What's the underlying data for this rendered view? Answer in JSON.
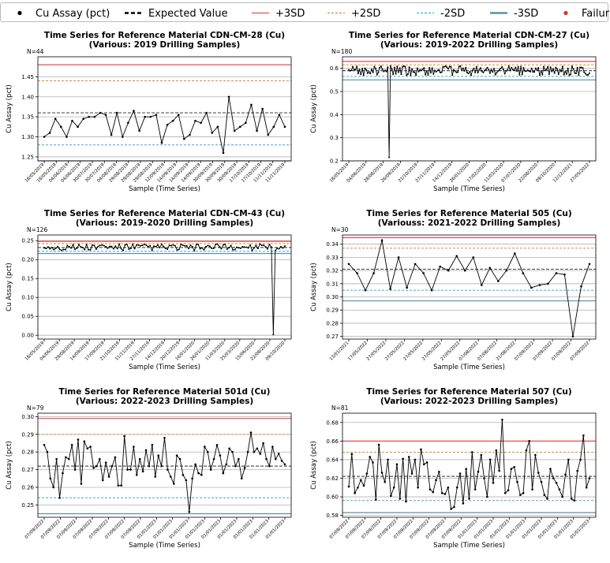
{
  "legend": {
    "items": [
      {
        "label": "Cu Assay (pct)",
        "kind": "dot",
        "color": "#000000"
      },
      {
        "label": "Expected Value",
        "kind": "thickdash",
        "color": "#000000"
      },
      {
        "label": "+3SD",
        "kind": "solid",
        "color": "#e84c4c"
      },
      {
        "label": "+2SD",
        "kind": "dash",
        "color": "#d98a2b"
      },
      {
        "label": "-2SD",
        "kind": "dash",
        "color": "#3fa9dc"
      },
      {
        "label": "-3SD",
        "kind": "thicksolid",
        "color": "#5d8fa8"
      },
      {
        "label": "Failure",
        "kind": "dot",
        "color": "#e03030"
      }
    ]
  },
  "chart_data": [
    {
      "type": "line",
      "title": "Time Series for Reference Material CDN-CM-28 (Cu)",
      "subtitle": "(Various: 2019 Drilling Samples)",
      "n_label": "N=44",
      "xlabel": "Sample (Time Series)",
      "ylabel": "Cu Assay (pct)",
      "ylim": [
        1.24,
        1.5
      ],
      "yticks": [
        "1.25",
        "1.30",
        "1.35",
        "1.40",
        "1.45"
      ],
      "ytick_values": [
        1.25,
        1.3,
        1.35,
        1.4,
        1.45
      ],
      "xticks": [
        "18/05/2019",
        "18/05/2019",
        "04/06/2019",
        "04/06/2019",
        "30/07/2019",
        "30/07/2019",
        "04/08/2019",
        "29/08/2019",
        "29/08/2019",
        "29/08/2019",
        "12/09/2019",
        "14/09/2019",
        "14/09/2019",
        "14/09/2019",
        "30/09/2019",
        "30/09/2019",
        "30/09/2019",
        "17/10/2019",
        "17/10/2019",
        "11/11/2019",
        "11/11/2019"
      ],
      "expected": 1.36,
      "plus3sd": 1.48,
      "plus2sd": 1.44,
      "minus2sd": 1.28,
      "minus3sd": 1.24,
      "values": [
        1.3,
        1.31,
        1.345,
        1.325,
        1.3,
        1.34,
        1.325,
        1.345,
        1.35,
        1.35,
        1.36,
        1.355,
        1.305,
        1.36,
        1.3,
        1.335,
        1.365,
        1.315,
        1.35,
        1.35,
        1.355,
        1.285,
        1.33,
        1.34,
        1.355,
        1.295,
        1.305,
        1.34,
        1.335,
        1.36,
        1.31,
        1.325,
        1.26,
        1.4,
        1.315,
        1.325,
        1.335,
        1.38,
        1.315,
        1.37,
        1.305,
        1.325,
        1.355,
        1.325
      ]
    },
    {
      "type": "line",
      "title": "Time Series for Reference Material CDN-CM-27 (Cu)",
      "subtitle": "(Various: 2019-2022 Drilling Samples)",
      "n_label": "N=180",
      "xlabel": "Sample (Time Series)",
      "ylabel": "Cu Assay (pct)",
      "ylim": [
        0.2,
        0.65
      ],
      "yticks": [
        "0.2",
        "0.3",
        "0.4",
        "0.5",
        "0.6"
      ],
      "ytick_values": [
        0.2,
        0.3,
        0.4,
        0.5,
        0.6
      ],
      "xticks": [
        "18/05/2019",
        "04/06/2019",
        "28/08/2019",
        "26/09/2019",
        "21/10/2019",
        "27/11/2019",
        "14/12/2019",
        "26/01/2020",
        "17/02/2020",
        "11/03/2020",
        "07/07/2020",
        "22/08/2020",
        "09/10/2020",
        "12/12/2021",
        "27/05/2022"
      ],
      "expected": 0.59,
      "plus3sd": 0.63,
      "plus2sd": 0.615,
      "minus2sd": 0.565,
      "minus3sd": 0.55,
      "base": 0.59,
      "amp": 0.02,
      "spikes": [
        {
          "index": 30,
          "value": 0.215
        }
      ]
    },
    {
      "type": "line",
      "title": "Time Series for Reference Material CDN-CM-43 (Cu)",
      "subtitle": "(Various: 2019-2020 Drilling Samples)",
      "n_label": "N=126",
      "xlabel": "Sample (Time Series)",
      "ylabel": "Cu Assay (pct)",
      "ylim": [
        -0.01,
        0.265
      ],
      "yticks": [
        "0.00",
        "0.05",
        "0.10",
        "0.15",
        "0.20",
        "0.25"
      ],
      "ytick_values": [
        0.0,
        0.05,
        0.1,
        0.15,
        0.2,
        0.25
      ],
      "xticks": [
        "18/05/2019",
        "04/06/2019",
        "29/08/2019",
        "14/09/2019",
        "17/09/2019",
        "21/10/2019",
        "11/11/2019",
        "27/11/2019",
        "14/12/2019",
        "20/12/2019",
        "16/01/2020",
        "26/01/2020",
        "11/03/2020",
        "25/03/2020",
        "15/06/2020",
        "22/08/2020",
        "09/10/2020"
      ],
      "expected": 0.232,
      "plus3sd": 0.248,
      "plus2sd": 0.242,
      "minus2sd": 0.222,
      "minus3sd": 0.216,
      "base": 0.232,
      "amp": 0.009,
      "spikes": [
        {
          "index": 119,
          "value": 0.002
        }
      ]
    },
    {
      "type": "line",
      "title": "Time Series for Reference Material 505 (Cu)",
      "subtitle": "(Variouss: 2021-2022 Drilling Samples)",
      "n_label": "N=30",
      "xlabel": "Sample (Time Series)",
      "ylabel": "Cu Assay (pct)",
      "ylim": [
        0.268,
        0.347
      ],
      "yticks": [
        "0.27",
        "0.28",
        "0.29",
        "0.30",
        "0.31",
        "0.32",
        "0.33",
        "0.34"
      ],
      "ytick_values": [
        0.27,
        0.28,
        0.29,
        0.3,
        0.31,
        0.32,
        0.33,
        0.34
      ],
      "xticks": [
        "13/01/2021",
        "17/05/2022",
        "27/05/2022",
        "27/05/2022",
        "27/05/2022",
        "27/05/2022",
        "27/05/2022",
        "07/08/2022",
        "07/08/2022",
        "21/08/2022",
        "07/09/2022",
        "07/09/2022",
        "07/09/2022",
        "07/09/2022"
      ],
      "expected": 0.321,
      "plus3sd": 0.345,
      "plus2sd": 0.337,
      "minus2sd": 0.305,
      "minus3sd": 0.297,
      "values": [
        0.325,
        0.318,
        0.305,
        0.318,
        0.343,
        0.306,
        0.33,
        0.307,
        0.325,
        0.318,
        0.305,
        0.323,
        0.32,
        0.331,
        0.32,
        0.33,
        0.309,
        0.322,
        0.312,
        0.32,
        0.333,
        0.318,
        0.307,
        0.309,
        0.31,
        0.318,
        0.317,
        0.27,
        0.308,
        0.325
      ]
    },
    {
      "type": "line",
      "title": "Time Series for Reference Material 501d (Cu)",
      "subtitle": "(Various: 2022-2023 Drilling Samples)",
      "n_label": "N=79",
      "xlabel": "Sample (Time Series)",
      "ylabel": "Cu Assay (pct)",
      "ylim": [
        0.243,
        0.302
      ],
      "yticks": [
        "0.25",
        "0.26",
        "0.27",
        "0.28",
        "0.29",
        "0.30"
      ],
      "ytick_values": [
        0.25,
        0.26,
        0.27,
        0.28,
        0.29,
        0.3
      ],
      "xticks": [
        "07/09/2022",
        "07/09/2022",
        "07/09/2022",
        "07/09/2022",
        "07/09/2022",
        "07/09/2022",
        "07/09/2022",
        "01/01/2023",
        "01/01/2023",
        "01/01/2023",
        "01/01/2023",
        "01/01/2023",
        "01/01/2023",
        "01/01/2023",
        "01/01/2023",
        "01/01/2023"
      ],
      "expected": 0.272,
      "plus3sd": 0.299,
      "plus2sd": 0.29,
      "minus2sd": 0.254,
      "minus3sd": 0.245,
      "values": [
        0.284,
        0.28,
        0.265,
        0.26,
        0.276,
        0.254,
        0.268,
        0.277,
        0.276,
        0.284,
        0.27,
        0.287,
        0.262,
        0.286,
        0.282,
        0.283,
        0.271,
        0.272,
        0.276,
        0.264,
        0.274,
        0.266,
        0.272,
        0.277,
        0.261,
        0.261,
        0.289,
        0.27,
        0.27,
        0.283,
        0.267,
        0.276,
        0.269,
        0.281,
        0.272,
        0.284,
        0.266,
        0.278,
        0.272,
        0.288,
        0.27,
        0.266,
        0.262,
        0.278,
        0.276,
        0.267,
        0.264,
        0.246,
        0.265,
        0.273,
        0.268,
        0.267,
        0.283,
        0.28,
        0.27,
        0.276,
        0.284,
        0.278,
        0.268,
        0.273,
        0.282,
        0.28,
        0.272,
        0.276,
        0.265,
        0.271,
        0.28,
        0.291,
        0.28,
        0.282,
        0.279,
        0.285,
        0.276,
        0.272,
        0.283,
        0.276,
        0.279,
        0.275,
        0.273
      ]
    },
    {
      "type": "line",
      "title": "Time Series for Reference Material 507 (Cu)",
      "subtitle": "(Various: 2022-2023 Drilling Samples)",
      "n_label": "N=81",
      "xlabel": "Sample (Time Series)",
      "ylabel": "Cu Assay (pct)",
      "ylim": [
        0.578,
        0.69
      ],
      "yticks": [
        "0.58",
        "0.60",
        "0.62",
        "0.64",
        "0.66",
        "0.68"
      ],
      "ytick_values": [
        0.58,
        0.6,
        0.62,
        0.64,
        0.66,
        0.68
      ],
      "xticks": [
        "07/09/2022",
        "07/09/2022",
        "07/09/2022",
        "07/09/2022",
        "07/09/2022",
        "07/09/2022",
        "07/09/2022",
        "07/09/2022",
        "01/01/2023",
        "01/01/2023",
        "01/01/2023",
        "01/01/2023",
        "01/01/2023",
        "01/01/2023",
        "01/01/2023",
        "01/01/2023"
      ],
      "expected": 0.622,
      "plus3sd": 0.66,
      "plus2sd": 0.648,
      "minus2sd": 0.596,
      "minus3sd": 0.583,
      "values": [
        0.611,
        0.646,
        0.604,
        0.61,
        0.618,
        0.612,
        0.625,
        0.643,
        0.637,
        0.597,
        0.656,
        0.626,
        0.616,
        0.64,
        0.601,
        0.61,
        0.635,
        0.598,
        0.641,
        0.595,
        0.643,
        0.625,
        0.64,
        0.61,
        0.651,
        0.635,
        0.637,
        0.608,
        0.605,
        0.618,
        0.627,
        0.604,
        0.603,
        0.61,
        0.587,
        0.589,
        0.61,
        0.625,
        0.593,
        0.63,
        0.598,
        0.648,
        0.608,
        0.627,
        0.645,
        0.62,
        0.6,
        0.64,
        0.615,
        0.65,
        0.628,
        0.683,
        0.604,
        0.607,
        0.63,
        0.632,
        0.616,
        0.602,
        0.604,
        0.65,
        0.66,
        0.608,
        0.645,
        0.626,
        0.616,
        0.602,
        0.598,
        0.63,
        0.62,
        0.615,
        0.608,
        0.6,
        0.624,
        0.64,
        0.598,
        0.596,
        0.628,
        0.64,
        0.666,
        0.61,
        0.62
      ]
    }
  ]
}
